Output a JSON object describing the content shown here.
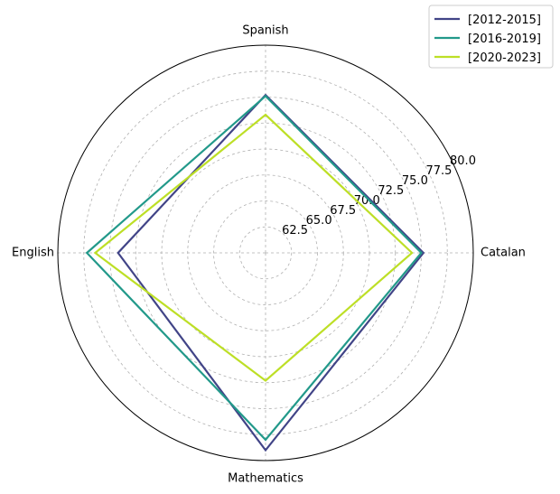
{
  "chart_data": {
    "type": "radar",
    "categories": [
      "Catalan",
      "Spanish",
      "English",
      "Mathematics"
    ],
    "rlim": [
      60,
      80
    ],
    "rticks": [
      "62.5",
      "65.0",
      "67.5",
      "70.0",
      "72.5",
      "75.0",
      "77.5",
      "80.0"
    ],
    "grid": true,
    "legend_position": "top-right",
    "series": [
      {
        "name": "[2012-2015]",
        "color": "#414487",
        "values": [
          75.2,
          75.2,
          74.2,
          79.0
        ]
      },
      {
        "name": "[2016-2019]",
        "color": "#22998a",
        "values": [
          75.0,
          75.1,
          77.2,
          78.0
        ]
      },
      {
        "name": "[2020-2023]",
        "color": "#bddf26",
        "values": [
          74.1,
          73.3,
          76.4,
          72.3
        ]
      }
    ]
  }
}
